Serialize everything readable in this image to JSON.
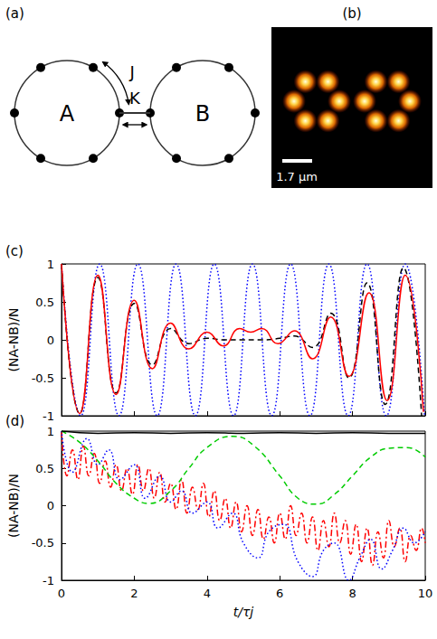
{
  "diagram": {
    "label": "(a)",
    "rings": [
      {
        "label": "A"
      },
      {
        "label": "B"
      }
    ],
    "couplings": {
      "intra": "J",
      "inter": "K"
    }
  },
  "image": {
    "label": "(b)",
    "scale_bar": "1.7 μm"
  },
  "chart_data": [
    {
      "type": "line",
      "label": "(c)",
      "ylabel": "(NA-NB)/N",
      "xlim": [
        0,
        10
      ],
      "xticks": [
        0,
        2,
        4,
        6,
        8,
        10
      ],
      "ylim": [
        -1,
        1
      ],
      "yticks": [
        -1,
        -0.5,
        0,
        0.5,
        1
      ],
      "tick_labels": "y",
      "grid": false,
      "series": [
        {
          "color": "#ff0000",
          "line_style": "solid",
          "x": [
            0,
            0.5,
            1,
            1.5,
            2,
            2.5,
            3,
            3.5,
            4,
            4.45,
            4.9,
            5.2,
            5.5,
            5.95,
            6.4,
            6.9,
            7.4,
            7.9,
            8.45,
            8.95,
            9.45,
            9.95
          ],
          "values": [
            1,
            -0.97,
            0.85,
            -0.72,
            0.52,
            -0.38,
            0.22,
            -0.12,
            0.1,
            -0.08,
            0.15,
            0.1,
            0.15,
            -0.05,
            0.12,
            -0.25,
            0.3,
            -0.48,
            0.62,
            -0.8,
            0.85,
            -0.95
          ]
        },
        {
          "color": "#000000",
          "line_style": "dashed",
          "x": [
            0,
            0.5,
            1,
            1.5,
            2,
            2.5,
            3,
            3.5,
            4,
            4.5,
            5,
            5.5,
            6,
            6.4,
            6.9,
            7.4,
            7.9,
            8.4,
            8.9,
            9.4,
            9.9
          ],
          "values": [
            1,
            -0.97,
            0.82,
            -0.7,
            0.48,
            -0.33,
            0.15,
            -0.05,
            0.02,
            0,
            0,
            0,
            0.02,
            0.05,
            -0.1,
            0.35,
            -0.5,
            0.75,
            -0.85,
            0.95,
            -1
          ]
        },
        {
          "color": "#0000ff",
          "line_style": "dotted",
          "x": [
            0,
            0.53,
            1.05,
            1.58,
            2.1,
            2.63,
            3.15,
            3.68,
            4.2,
            4.73,
            5.25,
            5.78,
            6.3,
            6.83,
            7.35,
            7.88,
            8.4,
            8.93,
            9.45,
            9.98
          ],
          "values": [
            1,
            -1,
            1,
            -1,
            1,
            -1,
            1,
            -1,
            1,
            -1,
            1,
            -1,
            1,
            -1,
            1,
            -1,
            1,
            -1,
            1,
            -1
          ]
        }
      ]
    },
    {
      "type": "line",
      "label": "(d)",
      "ylabel": "(NA-NB)/N",
      "xlabel": "t/τj",
      "xlim": [
        0,
        10
      ],
      "xticks": [
        0,
        2,
        4,
        6,
        8,
        10
      ],
      "ylim": [
        -1,
        1
      ],
      "yticks": [
        -1,
        -0.5,
        0,
        0.5,
        1
      ],
      "grid": false,
      "series": [
        {
          "color": "#000000",
          "line_style": "solid",
          "x": [
            0,
            1,
            2,
            3,
            4,
            5,
            6,
            7,
            8,
            9,
            10
          ],
          "values": [
            1,
            0.97,
            0.98,
            0.97,
            0.98,
            0.97,
            0.98,
            0.97,
            0.98,
            0.97,
            0.97
          ]
        },
        {
          "color": "#00cc00",
          "line_style": "dashed",
          "x": [
            0,
            0.5,
            1,
            1.5,
            2,
            2.4,
            3,
            3.5,
            4,
            4.7,
            5.3,
            6,
            6.5,
            7,
            7.5,
            8,
            8.5,
            9,
            9.5,
            10
          ],
          "values": [
            1,
            0.85,
            0.6,
            0.3,
            0.1,
            0.03,
            0.2,
            0.5,
            0.78,
            0.93,
            0.8,
            0.4,
            0.1,
            0.02,
            0.15,
            0.4,
            0.65,
            0.77,
            0.78,
            0.65
          ]
        },
        {
          "color": "#0000ff",
          "line_style": "dotted",
          "x": [
            0,
            0.3,
            0.7,
            1,
            1.3,
            1.6,
            2,
            2.3,
            2.7,
            3,
            3.3,
            3.6,
            4,
            4.3,
            4.7,
            5,
            5.4,
            5.7,
            6.1,
            6.5,
            6.9,
            7.2,
            7.5,
            7.9,
            8.2,
            8.5,
            8.8,
            9.1,
            9.4,
            9.7,
            10
          ],
          "values": [
            1,
            0.45,
            0.9,
            0.55,
            0.75,
            0.35,
            0.55,
            0.1,
            0.4,
            0.05,
            0.2,
            -0.1,
            0.05,
            -0.3,
            -0.1,
            -0.5,
            -0.7,
            -0.35,
            -0.25,
            -0.75,
            -0.95,
            -0.6,
            -0.5,
            -1,
            -0.7,
            -0.45,
            -0.85,
            -0.6,
            -0.3,
            -0.5,
            -0.35
          ]
        },
        {
          "color": "#ff0000",
          "line_style": "dashdot",
          "x": [
            0,
            0.15,
            0.3,
            0.45,
            0.6,
            0.75,
            0.9,
            1.05,
            1.2,
            1.35,
            1.5,
            1.65,
            1.8,
            1.95,
            2.1,
            2.25,
            2.4,
            2.55,
            2.7,
            2.85,
            3,
            3.15,
            3.3,
            3.45,
            3.6,
            3.75,
            3.9,
            4.05,
            4.2,
            4.35,
            4.5,
            4.65,
            4.8,
            4.95,
            5.1,
            5.25,
            5.4,
            5.55,
            5.7,
            5.85,
            6,
            6.15,
            6.3,
            6.45,
            6.6,
            6.75,
            6.9,
            7.05,
            7.2,
            7.35,
            7.5,
            7.65,
            7.8,
            7.95,
            8.1,
            8.25,
            8.4,
            8.55,
            8.7,
            8.85,
            9,
            9.15,
            9.3,
            9.45,
            9.6,
            9.75,
            9.9,
            10
          ],
          "values": [
            1,
            0.4,
            0.75,
            0.35,
            0.8,
            0.4,
            0.7,
            0.3,
            0.6,
            0.25,
            0.55,
            0.2,
            0.5,
            0.15,
            0.55,
            0.2,
            0.5,
            0.1,
            0.45,
            0.05,
            0.3,
            -0.05,
            0.35,
            -0.1,
            0.25,
            -0.05,
            0.3,
            -0.15,
            0.2,
            -0.2,
            0.1,
            -0.3,
            0.05,
            -0.35,
            0,
            -0.4,
            -0.05,
            -0.45,
            -0.15,
            -0.5,
            -0.1,
            -0.45,
            0,
            -0.4,
            -0.1,
            -0.5,
            -0.15,
            -0.6,
            -0.2,
            -0.55,
            -0.1,
            -0.5,
            -0.2,
            -0.65,
            -0.25,
            -0.75,
            -0.3,
            -0.8,
            -0.35,
            -0.7,
            -0.2,
            -0.55,
            -0.3,
            -0.75,
            -0.4,
            -0.6,
            -0.3,
            -0.5
          ]
        }
      ]
    }
  ]
}
